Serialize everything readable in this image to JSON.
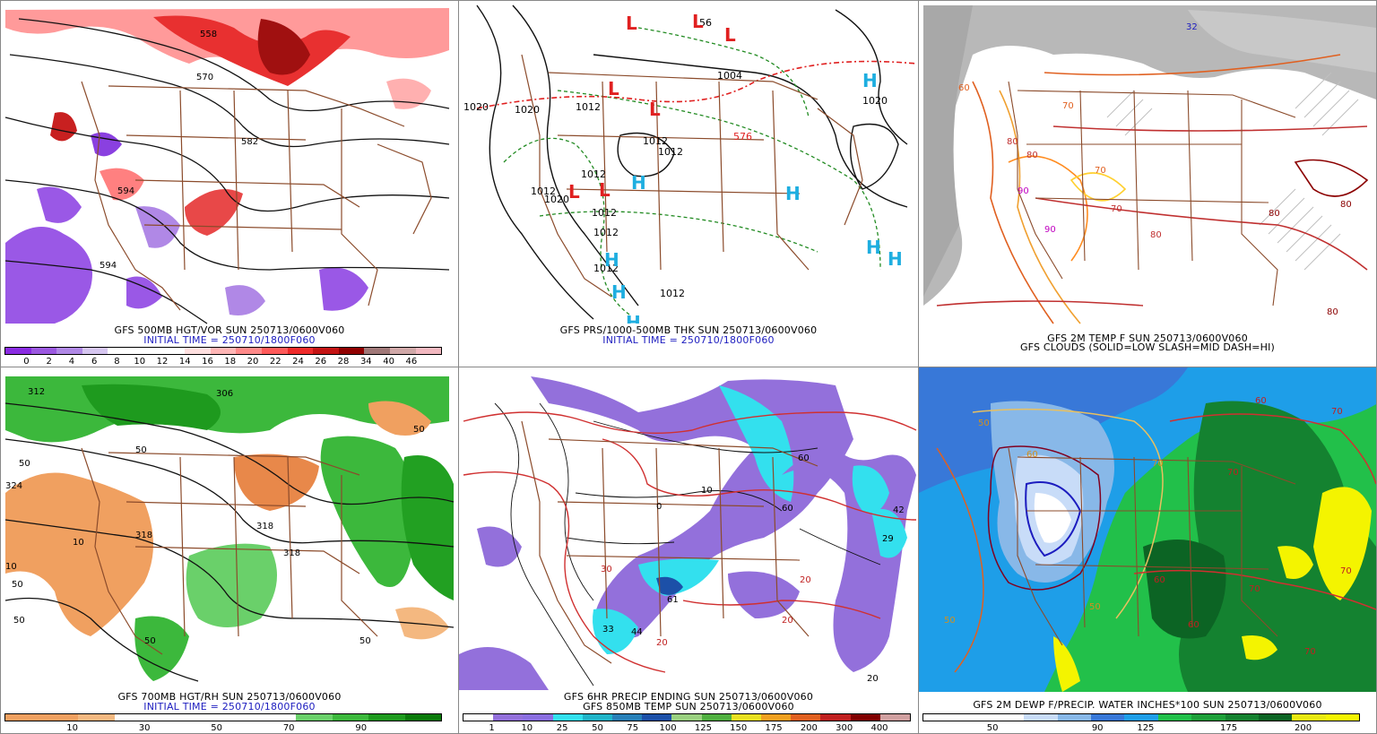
{
  "panels": [
    {
      "id": "p1",
      "caption1": "GFS 500MB HGT/VOR SUN 250713/0600V060",
      "caption2": "INITIAL TIME = 250710/1800F060",
      "scale_colors": [
        "#8a2be2",
        "#9b58e0",
        "#b088e6",
        "#d6c6f0",
        "#ffffff",
        "#ffffff",
        "#ffffff",
        "#ffe0e0",
        "#ffb6b6",
        "#ff8a8a",
        "#ff5a5a",
        "#ee2a2a",
        "#c41414",
        "#900000",
        "#a07878",
        "#d0a8a8",
        "#f2b8c0"
      ],
      "scale_labels": [
        "0",
        "2",
        "4",
        "6",
        "8",
        "10",
        "12",
        "14",
        "16",
        "18",
        "20",
        "22",
        "24",
        "26",
        "28",
        "34",
        "40",
        "46"
      ],
      "map_labels": [
        "558",
        "570",
        "582",
        "594",
        "594"
      ]
    },
    {
      "id": "p2",
      "caption1": "GFS PRS/1000-500MB THK SUN 250713/0600V060",
      "caption2": "INITIAL TIME = 250710/1800F060",
      "map_labels": [
        "1004",
        "1020",
        "1020",
        "1012",
        "1012",
        "1012",
        "1012",
        "1012",
        "1012",
        "1012",
        "1012",
        "1012",
        "1020",
        "1020",
        "576",
        "56"
      ],
      "pressure_centers": [
        "L",
        "L",
        "L",
        "L",
        "L",
        "L",
        "L",
        "H",
        "H",
        "H",
        "H",
        "H",
        "H",
        "H",
        "H"
      ]
    },
    {
      "id": "p3",
      "caption1": "GFS 2M TEMP F SUN 250713/0600V060",
      "caption2": "GFS CLOUDS (SOLID=LOW SLASH=MID DASH=HI)",
      "map_labels": [
        "32",
        "60",
        "70",
        "80",
        "80",
        "90",
        "90",
        "70",
        "70",
        "80",
        "80",
        "80",
        "80"
      ]
    },
    {
      "id": "p4",
      "caption1": "GFS 700MB HGT/RH SUN 250713/0600V060",
      "caption2": "INITIAL TIME = 250710/1800F060",
      "scale_colors": [
        "#f0a060",
        "#f0a060",
        "#f4b880",
        "#ffffff",
        "#ffffff",
        "#ffffff",
        "#ffffff",
        "#ffffff",
        "#6ad06a",
        "#3cb83c",
        "#1e9a1e",
        "#0a7a0a"
      ],
      "scale_labels": [
        "10",
        "30",
        "50",
        "70",
        "90"
      ],
      "map_labels": [
        "312",
        "306",
        "318",
        "324",
        "318",
        "318",
        "50",
        "50",
        "50",
        "50",
        "50",
        "50",
        "50",
        "10",
        "10"
      ]
    },
    {
      "id": "p5",
      "caption1": "GFS 6HR PRECIP ENDING SUN 250713/0600V060",
      "caption2": "GFS 850MB TEMP SUN 250713/0600V060",
      "scale_colors": [
        "#ffffff",
        "#9370db",
        "#8a6ee0",
        "#33e0ee",
        "#20b4c8",
        "#2880b8",
        "#1c50a8",
        "#9ad080",
        "#50b040",
        "#e8e020",
        "#f0a020",
        "#e06020",
        "#c02020",
        "#800000",
        "#d0a0a0"
      ],
      "scale_labels": [
        "1",
        "10",
        "25",
        "50",
        "75",
        "100",
        "125",
        "150",
        "175",
        "200",
        "300",
        "400"
      ],
      "map_labels": [
        "20",
        "20",
        "20",
        "30",
        "0",
        "10",
        "42",
        "29",
        "60",
        "60",
        "61",
        "44",
        "33",
        "20"
      ]
    },
    {
      "id": "p6",
      "caption1": "GFS 2M DEWP F/PRECIP. WATER INCHES*100 SUN 250713/0600V060",
      "scale_colors": [
        "#ffffff",
        "#ffffff",
        "#ffffff",
        "#c8dcf8",
        "#88b8e8",
        "#3878d8",
        "#1e9ee8",
        "#22c04a",
        "#1ea03a",
        "#148230",
        "#0c6424",
        "#e8e810",
        "#f4f400"
      ],
      "scale_labels": [
        "50",
        "90",
        "125",
        "175",
        "200"
      ],
      "map_labels": [
        "50",
        "60",
        "70",
        "50",
        "50",
        "60",
        "70",
        "70",
        "60",
        "60",
        "70",
        "70",
        "70"
      ]
    }
  ]
}
